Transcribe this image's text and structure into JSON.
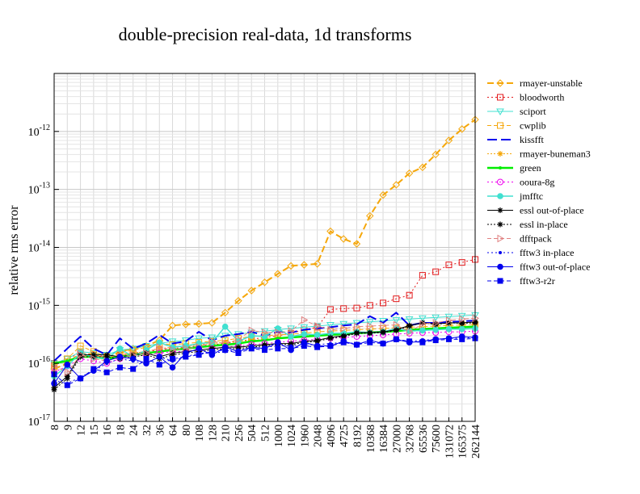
{
  "chart_data": {
    "type": "line",
    "title": "double-precision real-data, 1d transforms",
    "xlabel": "",
    "ylabel": "relative rms error",
    "y_scale": "log",
    "ylim": [
      1e-17,
      1e-11
    ],
    "y_ticks": [
      {
        "base": "10",
        "exp": "-17"
      },
      {
        "base": "10",
        "exp": "-16"
      },
      {
        "base": "10",
        "exp": "-15"
      },
      {
        "base": "10",
        "exp": "-14"
      },
      {
        "base": "10",
        "exp": "-13"
      },
      {
        "base": "10",
        "exp": "-12"
      }
    ],
    "categories": [
      "8",
      "9",
      "12",
      "15",
      "16",
      "18",
      "24",
      "32",
      "36",
      "64",
      "80",
      "108",
      "128",
      "210",
      "256",
      "504",
      "512",
      "1000",
      "1024",
      "1960",
      "2048",
      "4096",
      "4725",
      "8192",
      "10368",
      "16384",
      "27000",
      "32768",
      "65536",
      "75600",
      "131072",
      "165375",
      "262144"
    ],
    "grid": true,
    "legend_position": "right",
    "series": [
      {
        "name": "rmayer-unstable",
        "color": "#f5a70a",
        "dash": "8,4",
        "width": 2,
        "marker": "diamond-open",
        "values": [
          8e-17,
          1e-16,
          1.5e-16,
          1.4e-16,
          1.2e-16,
          1.6e-16,
          1.8e-16,
          2e-16,
          2.5e-16,
          4.5e-16,
          4.7e-16,
          4.8e-16,
          5e-16,
          7.5e-16,
          1.2e-15,
          1.8e-15,
          2.5e-15,
          3.5e-15,
          4.8e-15,
          5e-15,
          5.2e-15,
          1.9e-14,
          1.4e-14,
          1.15e-14,
          3.5e-14,
          8e-14,
          1.2e-13,
          1.9e-13,
          2.4e-13,
          4e-13,
          7e-13,
          1.1e-12,
          1.6e-12
        ]
      },
      {
        "name": "bloodworth",
        "color": "#e31a1c",
        "dash": "2,3",
        "width": 1,
        "marker": "square-open",
        "values": [
          1e-16,
          1.2e-16,
          1.5e-16,
          1.4e-16,
          1.3e-16,
          1.4e-16,
          1.5e-16,
          1.6e-16,
          1.7e-16,
          1.8e-16,
          1.9e-16,
          2e-16,
          2.1e-16,
          2.2e-16,
          2.4e-16,
          2.6e-16,
          2.8e-16,
          3e-16,
          3.3e-16,
          3.8e-16,
          4.2e-16,
          8.5e-16,
          8.8e-16,
          9e-16,
          1e-15,
          1.1e-15,
          1.3e-15,
          1.5e-15,
          3.3e-15,
          3.8e-15,
          5e-15,
          5.5e-15,
          6.2e-15
        ]
      },
      {
        "name": "sciport",
        "color": "#40e0d0",
        "dash": "",
        "width": 1,
        "marker": "triangle-down-open",
        "values": [
          1e-16,
          1.2e-16,
          1.6e-16,
          1.5e-16,
          1.4e-16,
          1.7e-16,
          1.8e-16,
          2e-16,
          2.2e-16,
          2.4e-16,
          2.5e-16,
          2.7e-16,
          2.8e-16,
          3e-16,
          3.2e-16,
          3.4e-16,
          3.6e-16,
          3.8e-16,
          4e-16,
          4.2e-16,
          4.4e-16,
          4.6e-16,
          4.8e-16,
          5e-16,
          5.2e-16,
          5.4e-16,
          5.6e-16,
          5.8e-16,
          6e-16,
          6.2e-16,
          6.4e-16,
          6.6e-16,
          6.8e-16
        ]
      },
      {
        "name": "cwplib",
        "color": "#f5a70a",
        "dash": "5,3",
        "width": 1,
        "marker": "square-open",
        "values": [
          9e-17,
          1.2e-16,
          2e-16,
          1.6e-16,
          1.3e-16,
          1.5e-16,
          1.7e-16,
          1.9e-16,
          2.2e-16,
          2.1e-16,
          2.2e-16,
          2.3e-16,
          2.4e-16,
          2.5e-16,
          2.7e-16,
          2.9e-16,
          3e-16,
          3.1e-16,
          3.2e-16,
          3.3e-16,
          3.5e-16,
          3.6e-16,
          3.7e-16,
          3.8e-16,
          3.9e-16,
          4e-16,
          4.1e-16,
          4.2e-16,
          4.3e-16,
          4.4e-16,
          4.5e-16,
          4.6e-16,
          4.7e-16
        ]
      },
      {
        "name": "kissfft",
        "color": "#0000ee",
        "dash": "12,5",
        "width": 2,
        "marker": "none",
        "values": [
          1.1e-16,
          1.8e-16,
          2.9e-16,
          1.8e-16,
          1.4e-16,
          2.7e-16,
          1.8e-16,
          2.2e-16,
          3.1e-16,
          2.2e-16,
          2.4e-16,
          3.5e-16,
          2.5e-16,
          3e-16,
          3.2e-16,
          3.5e-16,
          3e-16,
          3.5e-16,
          3.4e-16,
          3.8e-16,
          4e-16,
          4.2e-16,
          4.5e-16,
          4.7e-16,
          6.5e-16,
          5e-16,
          7.5e-16,
          4.5e-16,
          5e-16,
          5e-16,
          5.2e-16,
          5.3e-16,
          5.5e-16
        ]
      },
      {
        "name": "rmayer-buneman3",
        "color": "#f5a70a",
        "dash": "2,2",
        "width": 1,
        "marker": "star",
        "values": [
          1e-16,
          1.1e-16,
          1.4e-16,
          1.3e-16,
          1.2e-16,
          1.4e-16,
          1.5e-16,
          1.6e-16,
          1.8e-16,
          1.9e-16,
          2e-16,
          2.1e-16,
          2.2e-16,
          2.3e-16,
          2.4e-16,
          2.5e-16,
          2.6e-16,
          2.7e-16,
          2.8e-16,
          3e-16,
          3.1e-16,
          3.2e-16,
          3.3e-16,
          3.4e-16,
          3.5e-16,
          3.6e-16,
          3.7e-16,
          3.8e-16,
          4e-16,
          4.1e-16,
          4.2e-16,
          4.3e-16,
          4.4e-16
        ]
      },
      {
        "name": "green",
        "color": "#00ee00",
        "dash": "",
        "width": 2.5,
        "marker": "dot",
        "values": [
          1e-16,
          1.1e-16,
          1.3e-16,
          1.3e-16,
          1.2e-16,
          1.3e-16,
          1.4e-16,
          1.5e-16,
          1.6e-16,
          1.7e-16,
          1.8e-16,
          1.9e-16,
          2e-16,
          2.1e-16,
          2.2e-16,
          2.4e-16,
          2.5e-16,
          2.7e-16,
          2.8e-16,
          2.9e-16,
          3e-16,
          3.1e-16,
          3.2e-16,
          3.3e-16,
          3.4e-16,
          3.5e-16,
          3.6e-16,
          3.8e-16,
          3.9e-16,
          4e-16,
          4.1e-16,
          4.2e-16,
          4.3e-16
        ]
      },
      {
        "name": "ooura-8g",
        "color": "#ee00ee",
        "dash": "2,3",
        "width": 1,
        "marker": "circle-open",
        "values": [
          7e-17,
          9e-17,
          1.2e-16,
          1.1e-16,
          1e-16,
          1.2e-16,
          1.3e-16,
          1.4e-16,
          1.5e-16,
          1.6e-16,
          1.6e-16,
          1.7e-16,
          1.8e-16,
          1.9e-16,
          2e-16,
          2.1e-16,
          2.2e-16,
          2.3e-16,
          2.4e-16,
          2.5e-16,
          2.6e-16,
          2.7e-16,
          2.8e-16,
          2.9e-16,
          3e-16,
          3.1e-16,
          3.2e-16,
          3.3e-16,
          3.4e-16,
          3.4e-16,
          3.5e-16,
          3.5e-16,
          3.6e-16
        ]
      },
      {
        "name": "jmfftc",
        "color": "#40e0d0",
        "dash": "",
        "width": 1.5,
        "marker": "dot-large",
        "values": [
          6e-17,
          9e-17,
          1.5e-16,
          1.3e-16,
          1.2e-16,
          1.8e-16,
          1.3e-16,
          1.7e-16,
          2.3e-16,
          1.9e-16,
          2e-16,
          2.2e-16,
          2.3e-16,
          4.3e-16,
          2.4e-16,
          3e-16,
          2.9e-16,
          4e-16,
          2.9e-16,
          3.2e-16,
          3.1e-16,
          3.3e-16,
          3.3e-16,
          3.5e-16,
          3.4e-16,
          3.5e-16,
          4e-16,
          3.6e-16,
          3.7e-16,
          3.8e-16,
          3.9e-16,
          3.9e-16,
          4e-16
        ]
      },
      {
        "name": "essl out-of-place",
        "color": "#000000",
        "dash": "",
        "width": 1,
        "marker": "star",
        "values": [
          3.8e-17,
          6e-17,
          1.4e-16,
          1.4e-16,
          1.4e-16,
          1.3e-16,
          1.4e-16,
          1.5e-16,
          1.3e-16,
          1.5e-16,
          1.6e-16,
          1.7e-16,
          1.8e-16,
          1.9e-16,
          1.9e-16,
          2e-16,
          2.1e-16,
          2.2e-16,
          2.2e-16,
          2.4e-16,
          2.5e-16,
          2.8e-16,
          3e-16,
          3.4e-16,
          3.4e-16,
          3.5e-16,
          3.8e-16,
          4.5e-16,
          5e-16,
          4.8e-16,
          5e-16,
          5e-16,
          5.2e-16
        ]
      },
      {
        "name": "essl in-place",
        "color": "#000000",
        "dash": "2,2",
        "width": 1,
        "marker": "star",
        "values": [
          3.5e-17,
          5.5e-17,
          1.3e-16,
          1.3e-16,
          1.3e-16,
          1.2e-16,
          1.3e-16,
          1.4e-16,
          1.2e-16,
          1.4e-16,
          1.5e-16,
          1.6e-16,
          1.7e-16,
          1.8e-16,
          1.8e-16,
          1.9e-16,
          2e-16,
          2.1e-16,
          2.1e-16,
          2.3e-16,
          2.4e-16,
          2.7e-16,
          2.9e-16,
          3.3e-16,
          3.3e-16,
          3.4e-16,
          3.7e-16,
          4.4e-16,
          5e-16,
          4.7e-16,
          5e-16,
          4.9e-16,
          5e-16
        ]
      },
      {
        "name": "dfftpack",
        "color": "#e08080",
        "dash": "5,3",
        "width": 1,
        "marker": "triangle-right-open",
        "values": [
          9e-17,
          7e-17,
          1.4e-16,
          1.2e-16,
          1.1e-16,
          1.3e-16,
          1.4e-16,
          1.5e-16,
          1.9e-16,
          1.7e-16,
          1.8e-16,
          1.9e-16,
          2.4e-16,
          2.2e-16,
          2.6e-16,
          3.7e-16,
          3.4e-16,
          3.4e-16,
          3.6e-16,
          5.6e-16,
          4.4e-16,
          3.8e-16,
          4e-16,
          4.3e-16,
          4.4e-16,
          4.5e-16,
          4.6e-16,
          3.5e-16,
          4.8e-16,
          5e-16,
          5.5e-16,
          5.8e-16,
          6e-16
        ]
      },
      {
        "name": "fftw3 in-place",
        "color": "#0000ee",
        "dash": "2,3",
        "width": 1,
        "marker": "dot",
        "values": [
          5e-17,
          4.5e-17,
          5.8e-17,
          7.5e-17,
          1e-16,
          1.2e-16,
          1.1e-16,
          1e-16,
          1.3e-16,
          1.1e-16,
          1.3e-16,
          1.5e-16,
          1.5e-16,
          1.6e-16,
          1.7e-16,
          1.8e-16,
          1.9e-16,
          2e-16,
          2e-16,
          2.1e-16,
          2.1e-16,
          2.2e-16,
          2.3e-16,
          2.2e-16,
          2.4e-16,
          2.3e-16,
          2.5e-16,
          2.4e-16,
          2.5e-16,
          2.6e-16,
          2.7e-16,
          2.7e-16,
          2.8e-16
        ]
      },
      {
        "name": "fftw3 out-of-place",
        "color": "#0000ee",
        "dash": "",
        "width": 1,
        "marker": "dot-large",
        "values": [
          4.5e-17,
          9.5e-17,
          5.5e-17,
          7.5e-17,
          1.1e-16,
          1.3e-16,
          1.2e-16,
          1e-16,
          1.3e-16,
          8.5e-17,
          1.5e-16,
          1.8e-16,
          1.4e-16,
          1.9e-16,
          1.6e-16,
          1.9e-16,
          1.8e-16,
          2.3e-16,
          1.7e-16,
          2.3e-16,
          2e-16,
          2e-16,
          2.4e-16,
          2.1e-16,
          2.5e-16,
          2.2e-16,
          2.6e-16,
          2.3e-16,
          2.4e-16,
          2.6e-16,
          2.7e-16,
          2.9e-16,
          2.8e-16
        ]
      },
      {
        "name": "fftw3-r2r",
        "color": "#0000ee",
        "dash": "5,3",
        "width": 1,
        "marker": "square",
        "values": [
          6.5e-17,
          4.2e-17,
          5.5e-17,
          8e-17,
          7e-17,
          8.5e-17,
          8e-17,
          1.2e-16,
          9.5e-17,
          1.2e-16,
          1.3e-16,
          1.4e-16,
          1.6e-16,
          1.7e-16,
          1.5e-16,
          1.8e-16,
          1.7e-16,
          1.8e-16,
          1.8e-16,
          2e-16,
          1.9e-16,
          2e-16,
          2.3e-16,
          2.1e-16,
          2.3e-16,
          2.2e-16,
          2.6e-16,
          2.4e-16,
          2.3e-16,
          2.5e-16,
          2.6e-16,
          2.6e-16,
          2.7e-16
        ]
      }
    ]
  }
}
